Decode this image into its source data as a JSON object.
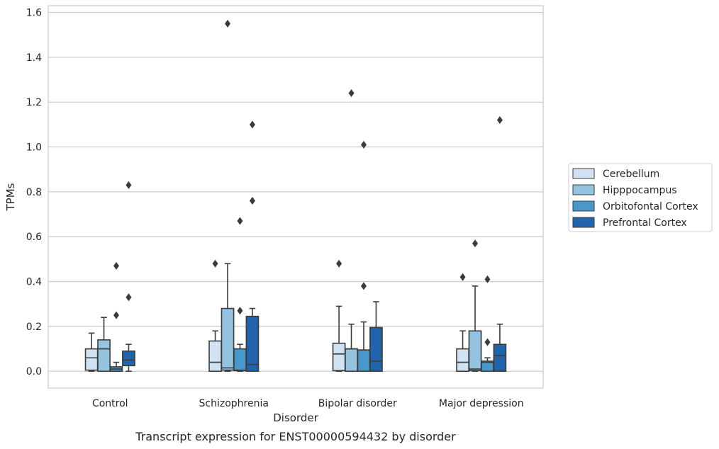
{
  "chart_data": {
    "type": "box",
    "title": "",
    "caption": "Transcript expression for ENST00000594432 by disorder",
    "xlabel": "Disorder",
    "ylabel": "TPMs",
    "ylim": [
      -0.075,
      1.63
    ],
    "yticks": [
      "0.0",
      "0.2",
      "0.4",
      "0.6",
      "0.8",
      "1.0",
      "1.2",
      "1.4",
      "1.6"
    ],
    "grid": "horizontal",
    "legend_placement": "right, outside plot",
    "categories": [
      "Control",
      "Schizophrenia",
      "Bipolar disorder",
      "Major depression"
    ],
    "series": [
      {
        "name": "Cerebellum",
        "color": "#d0e1f2",
        "boxes": [
          {
            "whislo": 0.0,
            "q1": 0.005,
            "med": 0.06,
            "q3": 0.1,
            "whishi": 0.17,
            "fliers": []
          },
          {
            "whislo": 0.0,
            "q1": 0.0,
            "med": 0.04,
            "q3": 0.135,
            "whishi": 0.18,
            "fliers": [
              0.48
            ]
          },
          {
            "whislo": 0.0,
            "q1": 0.003,
            "med": 0.077,
            "q3": 0.125,
            "whishi": 0.29,
            "fliers": [
              0.48
            ]
          },
          {
            "whislo": 0.0,
            "q1": 0.0,
            "med": 0.04,
            "q3": 0.1,
            "whishi": 0.18,
            "fliers": [
              0.42
            ]
          }
        ]
      },
      {
        "name": "Hipppocampus",
        "color": "#94c4df",
        "boxes": [
          {
            "whislo": 0.0,
            "q1": 0.0,
            "med": 0.1,
            "q3": 0.14,
            "whishi": 0.24,
            "fliers": []
          },
          {
            "whislo": 0.0,
            "q1": 0.005,
            "med": 0.015,
            "q3": 0.28,
            "whishi": 0.48,
            "fliers": [
              1.55
            ]
          },
          {
            "whislo": 0.0,
            "q1": 0.0,
            "med": 0.1,
            "q3": 0.1,
            "whishi": 0.21,
            "fliers": [
              1.24
            ]
          },
          {
            "whislo": 0.0,
            "q1": 0.003,
            "med": 0.01,
            "q3": 0.18,
            "whishi": 0.38,
            "fliers": [
              0.57
            ]
          }
        ]
      },
      {
        "name": "Orbitofontal Cortex",
        "color": "#4a98c9",
        "boxes": [
          {
            "whislo": 0.0,
            "q1": 0.0,
            "med": 0.01,
            "q3": 0.02,
            "whishi": 0.04,
            "fliers": [
              0.25,
              0.47
            ]
          },
          {
            "whislo": 0.0,
            "q1": 0.003,
            "med": 0.005,
            "q3": 0.1,
            "whishi": 0.12,
            "fliers": [
              0.27,
              0.67
            ]
          },
          {
            "whislo": 0.0,
            "q1": 0.0,
            "med": 0.095,
            "q3": 0.095,
            "whishi": 0.22,
            "fliers": [
              0.38,
              1.01
            ]
          },
          {
            "whislo": 0.0,
            "q1": 0.0,
            "med": 0.04,
            "q3": 0.045,
            "whishi": 0.06,
            "fliers": [
              0.13,
              0.41
            ]
          }
        ]
      },
      {
        "name": "Prefrontal Cortex",
        "color": "#2164ab",
        "boxes": [
          {
            "whislo": 0.0,
            "q1": 0.025,
            "med": 0.05,
            "q3": 0.09,
            "whishi": 0.12,
            "fliers": [
              0.33,
              0.83
            ]
          },
          {
            "whislo": 0.0,
            "q1": 0.0,
            "med": 0.03,
            "q3": 0.245,
            "whishi": 0.28,
            "fliers": [
              0.76,
              1.1
            ]
          },
          {
            "whislo": 0.0,
            "q1": 0.0,
            "med": 0.045,
            "q3": 0.195,
            "whishi": 0.31,
            "fliers": []
          },
          {
            "whislo": 0.0,
            "q1": 0.0,
            "med": 0.07,
            "q3": 0.12,
            "whishi": 0.21,
            "fliers": [
              1.12
            ]
          }
        ]
      }
    ]
  }
}
